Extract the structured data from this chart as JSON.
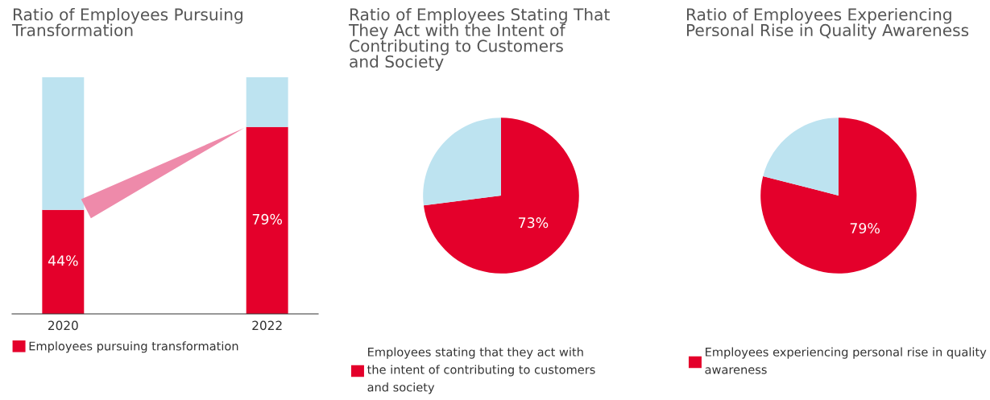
{
  "chart_data": [
    {
      "type": "bar",
      "title": "Ratio of Employees Pursuing\nTransformation",
      "categories": [
        "2020",
        "2022"
      ],
      "stacked": true,
      "ylim": [
        0,
        100
      ],
      "legend": "bottom",
      "tick_labels": "x",
      "series": [
        {
          "name": "Employees pursuing transformation",
          "color": "#e4002b",
          "values": [
            44,
            79
          ],
          "value_labels": [
            "44%",
            "79%"
          ]
        },
        {
          "color": "#bde3f0",
          "values": [
            56,
            21
          ]
        }
      ]
    },
    {
      "type": "pie",
      "title": "Ratio of Employees Stating That\nThey Act with the Intent of\nContributing to Customers\nand Society",
      "categories": [
        "Employees stating that they act with\nthe intent of contributing to customers\nand society",
        null
      ],
      "values": [
        73,
        27
      ],
      "colors": [
        "#e4002b",
        "#bde3f0"
      ],
      "value_labels": [
        "73%",
        null
      ],
      "legend": "bottom"
    },
    {
      "type": "pie",
      "title": "Ratio of Employees Experiencing\nPersonal Rise in Quality Awareness",
      "categories": [
        "Employees experiencing personal rise in quality\nawareness",
        null
      ],
      "values": [
        79,
        21
      ],
      "colors": [
        "#e4002b",
        "#bde3f0"
      ],
      "value_labels": [
        "79%",
        null
      ],
      "legend": "bottom"
    }
  ]
}
